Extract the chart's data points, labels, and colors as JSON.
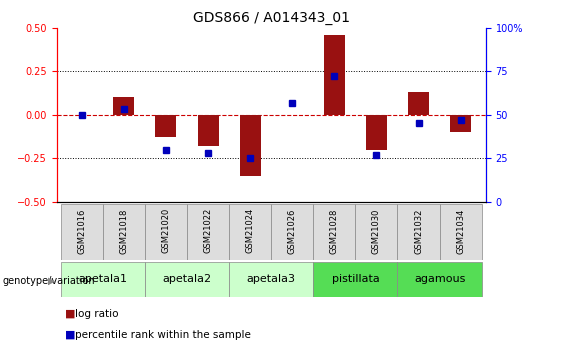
{
  "title": "GDS866 / A014343_01",
  "samples": [
    "GSM21016",
    "GSM21018",
    "GSM21020",
    "GSM21022",
    "GSM21024",
    "GSM21026",
    "GSM21028",
    "GSM21030",
    "GSM21032",
    "GSM21034"
  ],
  "log_ratio": [
    0.0,
    0.1,
    -0.13,
    -0.18,
    -0.35,
    0.0,
    0.46,
    -0.2,
    0.13,
    -0.1
  ],
  "percentile_rank": [
    50,
    53,
    30,
    28,
    25,
    57,
    72,
    27,
    45,
    47
  ],
  "groups": [
    {
      "label": "apetala1",
      "indices": [
        0,
        1
      ],
      "color": "#ccffcc"
    },
    {
      "label": "apetala2",
      "indices": [
        2,
        3
      ],
      "color": "#ccffcc"
    },
    {
      "label": "apetala3",
      "indices": [
        4,
        5
      ],
      "color": "#ccffcc"
    },
    {
      "label": "pistillata",
      "indices": [
        6,
        7
      ],
      "color": "#55dd55"
    },
    {
      "label": "agamous",
      "indices": [
        8,
        9
      ],
      "color": "#55dd55"
    }
  ],
  "ylim": [
    -0.5,
    0.5
  ],
  "yticks_left": [
    -0.5,
    -0.25,
    0.0,
    0.25,
    0.5
  ],
  "yticks_right": [
    0,
    25,
    50,
    75,
    100
  ],
  "bar_color": "#991111",
  "dot_color": "#0000bb",
  "hline_color": "#cc0000",
  "bar_width": 0.5,
  "title_fontsize": 10,
  "tick_fontsize": 7,
  "sample_label_fontsize": 6,
  "group_label_fontsize": 8
}
